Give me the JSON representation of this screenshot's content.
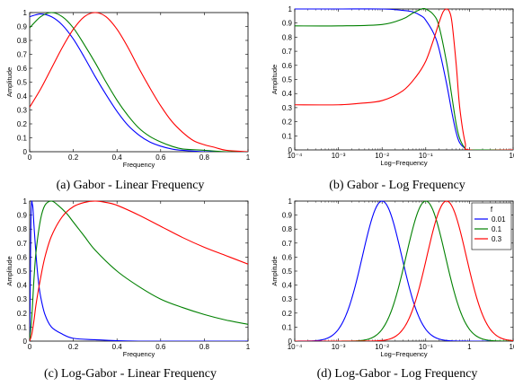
{
  "panels": [
    {
      "caption": "(a) Gabor - Linear Frequency",
      "chart_data": {
        "type": "line",
        "xscale": "linear",
        "xlim": [
          0,
          1
        ],
        "ylim": [
          0,
          1
        ],
        "xticks": [
          "0",
          "0.2",
          "0.4",
          "0.6",
          "0.8",
          "1"
        ],
        "yticks": [
          "0",
          "0.1",
          "0.2",
          "0.3",
          "0.4",
          "0.5",
          "0.6",
          "0.7",
          "0.8",
          "0.9",
          "1"
        ],
        "xlabel": "Frequency",
        "ylabel": "Amplitude",
        "series": [
          {
            "color": "#0000ff",
            "x": [
              0,
              0.05,
              0.1,
              0.15,
              0.2,
              0.25,
              0.3,
              0.35,
              0.4,
              0.45,
              0.5,
              0.55,
              0.6,
              0.65,
              0.7,
              0.8,
              0.9,
              1
            ],
            "y": [
              0.97,
              0.99,
              0.97,
              0.91,
              0.81,
              0.68,
              0.54,
              0.41,
              0.29,
              0.19,
              0.12,
              0.07,
              0.04,
              0.02,
              0.01,
              0.0,
              0.0,
              0.0
            ]
          },
          {
            "color": "#008000",
            "x": [
              0,
              0.05,
              0.1,
              0.15,
              0.2,
              0.25,
              0.3,
              0.35,
              0.4,
              0.45,
              0.5,
              0.55,
              0.6,
              0.65,
              0.7,
              0.8,
              0.9,
              1
            ],
            "y": [
              0.89,
              0.97,
              1.0,
              0.97,
              0.89,
              0.77,
              0.64,
              0.5,
              0.37,
              0.26,
              0.17,
              0.11,
              0.07,
              0.04,
              0.02,
              0.01,
              0.0,
              0.0
            ]
          },
          {
            "color": "#ff0000",
            "x": [
              0,
              0.05,
              0.1,
              0.15,
              0.2,
              0.25,
              0.3,
              0.35,
              0.4,
              0.45,
              0.5,
              0.55,
              0.6,
              0.65,
              0.7,
              0.75,
              0.8,
              0.85,
              0.9,
              1
            ],
            "y": [
              0.32,
              0.45,
              0.6,
              0.75,
              0.88,
              0.97,
              1.0,
              0.97,
              0.88,
              0.75,
              0.6,
              0.46,
              0.33,
              0.22,
              0.14,
              0.08,
              0.05,
              0.03,
              0.01,
              0.0
            ]
          }
        ]
      }
    },
    {
      "caption": "(b) Gabor - Log Frequency",
      "chart_data": {
        "type": "line",
        "xscale": "log",
        "xlim": [
          0.0001,
          10
        ],
        "ylim": [
          0,
          1
        ],
        "xticks": [
          "10⁻⁴",
          "10⁻³",
          "10⁻²",
          "10⁻¹",
          "1",
          "10"
        ],
        "yticks": [
          "0",
          "0.1",
          "0.2",
          "0.3",
          "0.4",
          "0.5",
          "0.6",
          "0.7",
          "0.8",
          "0.9",
          "1"
        ],
        "xlabel": "Log−Frequency",
        "ylabel": "Amplitude",
        "series": [
          {
            "color": "#0000ff",
            "x": [
              0.0001,
              0.001,
              0.01,
              0.03,
              0.05,
              0.08,
              0.1,
              0.15,
              0.2,
              0.3,
              0.4,
              0.5,
              0.6,
              0.8,
              1,
              10
            ],
            "y": [
              1.0,
              1.0,
              1.0,
              0.99,
              0.98,
              0.95,
              0.92,
              0.83,
              0.72,
              0.47,
              0.26,
              0.12,
              0.05,
              0.01,
              0.0,
              0.0
            ]
          },
          {
            "color": "#008000",
            "x": [
              0.0001,
              0.001,
              0.01,
              0.03,
              0.05,
              0.08,
              0.1,
              0.15,
              0.2,
              0.3,
              0.4,
              0.5,
              0.6,
              0.8,
              1,
              10
            ],
            "y": [
              0.88,
              0.88,
              0.89,
              0.93,
              0.97,
              1.0,
              1.0,
              0.96,
              0.88,
              0.62,
              0.37,
              0.18,
              0.08,
              0.01,
              0.0,
              0.0
            ]
          },
          {
            "color": "#ff0000",
            "x": [
              0.0001,
              0.001,
              0.003,
              0.01,
              0.03,
              0.06,
              0.1,
              0.15,
              0.2,
              0.25,
              0.3,
              0.35,
              0.4,
              0.5,
              0.6,
              0.8,
              1,
              10
            ],
            "y": [
              0.32,
              0.32,
              0.33,
              0.35,
              0.42,
              0.52,
              0.63,
              0.78,
              0.9,
              0.98,
              1.0,
              0.98,
              0.9,
              0.6,
              0.3,
              0.05,
              0.0,
              0.0
            ]
          }
        ]
      }
    },
    {
      "caption": "(c) Log-Gabor - Linear Frequency",
      "chart_data": {
        "type": "line",
        "xscale": "linear",
        "xlim": [
          0,
          1
        ],
        "ylim": [
          0,
          1
        ],
        "xticks": [
          "0",
          "0.2",
          "0.4",
          "0.6",
          "0.8",
          "1"
        ],
        "yticks": [
          "0",
          "0.1",
          "0.2",
          "0.3",
          "0.4",
          "0.5",
          "0.6",
          "0.7",
          "0.8",
          "0.9",
          "1"
        ],
        "xlabel": "Frequency",
        "ylabel": "Amplitude",
        "series": [
          {
            "color": "#0000ff",
            "x": [
              0.0,
              0.002,
              0.004,
              0.006,
              0.008,
              0.01,
              0.012,
              0.015,
              0.02,
              0.03,
              0.04,
              0.05,
              0.07,
              0.1,
              0.15,
              0.2,
              0.3,
              0.5,
              1
            ],
            "y": [
              0.0,
              0.25,
              0.62,
              0.87,
              0.97,
              1.0,
              0.98,
              0.95,
              0.82,
              0.6,
              0.43,
              0.32,
              0.19,
              0.1,
              0.05,
              0.02,
              0.01,
              0.0,
              0.0
            ]
          },
          {
            "color": "#008000",
            "x": [
              0.0,
              0.01,
              0.02,
              0.03,
              0.05,
              0.07,
              0.1,
              0.13,
              0.17,
              0.2,
              0.25,
              0.3,
              0.4,
              0.5,
              0.6,
              0.7,
              0.8,
              0.9,
              1
            ],
            "y": [
              0.0,
              0.18,
              0.45,
              0.65,
              0.87,
              0.97,
              1.0,
              0.97,
              0.91,
              0.85,
              0.75,
              0.65,
              0.5,
              0.39,
              0.3,
              0.24,
              0.19,
              0.15,
              0.12
            ]
          },
          {
            "color": "#ff0000",
            "x": [
              0.0,
              0.01,
              0.02,
              0.03,
              0.05,
              0.07,
              0.1,
              0.15,
              0.2,
              0.25,
              0.3,
              0.35,
              0.4,
              0.5,
              0.6,
              0.7,
              0.8,
              0.9,
              1
            ],
            "y": [
              0.0,
              0.05,
              0.15,
              0.27,
              0.45,
              0.6,
              0.75,
              0.89,
              0.96,
              0.99,
              1.0,
              0.99,
              0.97,
              0.9,
              0.82,
              0.74,
              0.67,
              0.61,
              0.55
            ]
          }
        ]
      }
    },
    {
      "caption": "(d) Log-Gabor - Log Frequency",
      "chart_data": {
        "type": "line",
        "xscale": "log",
        "xlim": [
          0.0001,
          10
        ],
        "ylim": [
          0,
          1
        ],
        "xticks": [
          "10⁻⁴",
          "10⁻³",
          "10⁻²",
          "10⁻¹",
          "1",
          "10"
        ],
        "yticks": [
          "0",
          "0.1",
          "0.2",
          "0.3",
          "0.4",
          "0.5",
          "0.6",
          "0.7",
          "0.8",
          "0.9",
          "1"
        ],
        "xlabel": "Log−Frequency",
        "ylabel": "Amplitude",
        "legend": {
          "title": "f",
          "position": "top-right",
          "entries": [
            "0.01",
            "0.1",
            "0.3"
          ]
        },
        "series": [
          {
            "name": "0.01",
            "color": "#0000ff",
            "center": 0.01,
            "sigma_decades": 0.45
          },
          {
            "name": "0.1",
            "color": "#008000",
            "center": 0.1,
            "sigma_decades": 0.45
          },
          {
            "name": "0.3",
            "color": "#ff0000",
            "center": 0.3,
            "sigma_decades": 0.45
          }
        ]
      }
    }
  ]
}
